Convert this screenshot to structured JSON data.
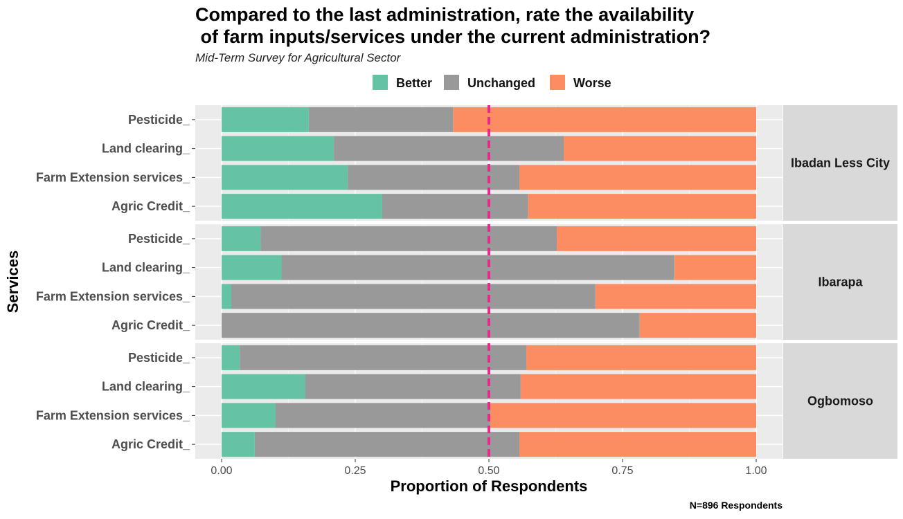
{
  "chart_data": {
    "type": "bar",
    "orientation": "horizontal",
    "stacked": true,
    "title_line1": "Compared to the last administration, rate the availability",
    "title_line2": " of farm inputs/services under the current administration?",
    "subtitle": "Mid-Term Survey for Agricultural Sector",
    "xlabel": "Proportion of Respondents",
    "ylabel": "Services",
    "caption": "N=896 Respondents",
    "xlim": [
      0,
      1
    ],
    "xticks": [
      "0.00",
      "0.25",
      "0.50",
      "0.75",
      "1.00"
    ],
    "xtick_values": [
      0,
      0.25,
      0.5,
      0.75,
      1.0
    ],
    "reference_line": {
      "x": 0.5,
      "style": "dashed",
      "color": "#e7298a"
    },
    "legend": {
      "placement": "top",
      "entries": [
        "Better",
        "Unchanged",
        "Worse"
      ]
    },
    "colors": {
      "Better": "#66c2a5",
      "Unchanged": "#999999",
      "Worse": "#fc8d62"
    },
    "categories": [
      "Pesticide_",
      "Land clearing_",
      "Farm Extension services_",
      "Agric Credit_"
    ],
    "panels": [
      {
        "name": "Ibadan Less City",
        "rows": [
          {
            "category": "Pesticide_",
            "Better": 0.163,
            "Unchanged": 0.27,
            "Worse": 0.567
          },
          {
            "category": "Land clearing_",
            "Better": 0.21,
            "Unchanged": 0.43,
            "Worse": 0.36
          },
          {
            "category": "Farm Extension services_",
            "Better": 0.236,
            "Unchanged": 0.321,
            "Worse": 0.443
          },
          {
            "category": "Agric Credit_",
            "Better": 0.3,
            "Unchanged": 0.273,
            "Worse": 0.427
          }
        ]
      },
      {
        "name": "Ibarapa",
        "rows": [
          {
            "category": "Pesticide_",
            "Better": 0.073,
            "Unchanged": 0.554,
            "Worse": 0.373
          },
          {
            "category": "Land clearing_",
            "Better": 0.112,
            "Unchanged": 0.734,
            "Worse": 0.154
          },
          {
            "category": "Farm Extension services_",
            "Better": 0.017,
            "Unchanged": 0.682,
            "Worse": 0.301
          },
          {
            "category": "Agric Credit_",
            "Better": 0.0,
            "Unchanged": 0.781,
            "Worse": 0.219
          }
        ]
      },
      {
        "name": "Ogbomoso",
        "rows": [
          {
            "category": "Pesticide_",
            "Better": 0.034,
            "Unchanged": 0.536,
            "Worse": 0.43
          },
          {
            "category": "Land clearing_",
            "Better": 0.156,
            "Unchanged": 0.403,
            "Worse": 0.441
          },
          {
            "category": "Farm Extension services_",
            "Better": 0.101,
            "Unchanged": 0.401,
            "Worse": 0.498
          },
          {
            "category": "Agric Credit_",
            "Better": 0.062,
            "Unchanged": 0.495,
            "Worse": 0.443
          }
        ]
      }
    ]
  }
}
